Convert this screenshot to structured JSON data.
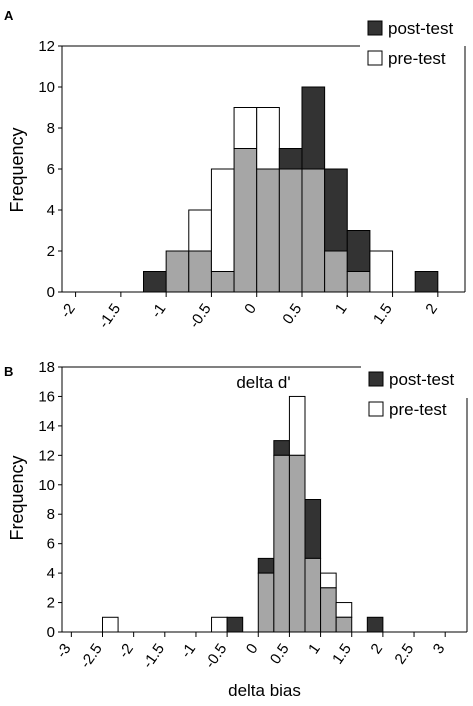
{
  "chart_data": [
    {
      "panel_label": "A",
      "type": "bar",
      "xlabel": "delta d'",
      "ylabel": "Frequency",
      "ylim": [
        0,
        12
      ],
      "yticks": [
        0,
        2,
        4,
        6,
        8,
        10,
        12
      ],
      "xlim": [
        -2.15,
        2.3
      ],
      "xticks": [
        "-2",
        "-1.5",
        "-1",
        "-0.5",
        "0",
        "0.5",
        "1",
        "1.5",
        "2"
      ],
      "bin_width": 0.25,
      "bins_start": [
        -1.25,
        -1.0,
        -0.75,
        -0.5,
        -0.25,
        0.0,
        0.25,
        0.5,
        0.75,
        1.0,
        1.25,
        1.5,
        1.75
      ],
      "series": [
        {
          "name": "pre-test",
          "values": [
            0,
            2,
            4,
            6,
            9,
            9,
            6,
            6,
            2,
            1,
            2,
            0,
            0
          ]
        },
        {
          "name": "post-test",
          "values": [
            1,
            2,
            2,
            1,
            7,
            6,
            7,
            10,
            6,
            3,
            0,
            0,
            1
          ]
        }
      ],
      "overlap_color": "#a6a6a6",
      "legend_position": "top-right",
      "grid": false
    },
    {
      "panel_label": "B",
      "type": "bar",
      "xlabel": "delta bias",
      "ylabel": "Frequency",
      "ylim": [
        0,
        18
      ],
      "yticks": [
        0,
        2,
        4,
        6,
        8,
        10,
        12,
        14,
        16,
        18
      ],
      "xlim": [
        -3.15,
        3.35
      ],
      "xticks": [
        "-3",
        "-2.5",
        "-2",
        "-1.5",
        "-1",
        "-0.5",
        "0",
        "0.5",
        "1",
        "1.5",
        "2",
        "2.5",
        "3"
      ],
      "bin_width": 0.25,
      "bins_start": [
        -2.5,
        -0.75,
        -0.5,
        0.0,
        0.25,
        0.5,
        0.75,
        1.0,
        1.25,
        1.75
      ],
      "series": [
        {
          "name": "pre-test",
          "values": [
            1,
            1,
            0,
            4,
            12,
            16,
            5,
            4,
            2,
            0
          ]
        },
        {
          "name": "post-test",
          "values": [
            0,
            0,
            1,
            5,
            13,
            12,
            9,
            3,
            1,
            1
          ]
        }
      ],
      "overlap_color": "#a6a6a6",
      "legend_position": "top-right",
      "grid": false
    }
  ],
  "colors": {
    "post_test": "#333333",
    "pre_test": "#ffffff",
    "overlap": "#a6a6a6",
    "stroke": "#000000"
  }
}
